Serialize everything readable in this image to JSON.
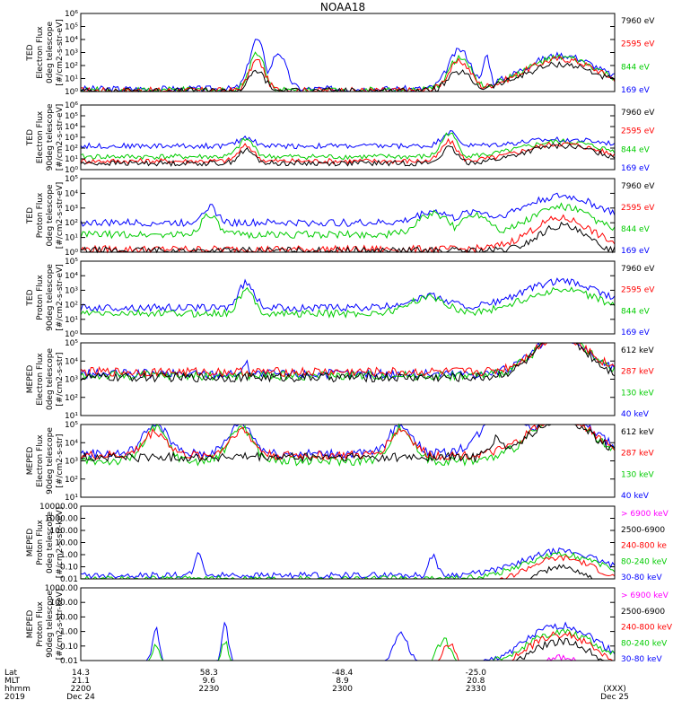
{
  "title": "NOAA18",
  "colors": {
    "black": "#000000",
    "red": "#ff0000",
    "green": "#00cc00",
    "blue": "#0000ff",
    "magenta": "#ff00ff"
  },
  "chart_data": [
    {
      "type": "line",
      "panel": 1,
      "ylabel": [
        "TED",
        "Electron Flux",
        "0deg telescope",
        "[#/cm2-s-str-eV]"
      ],
      "yscale": "log",
      "ylim": [
        1,
        1000000
      ],
      "yticks": [
        {
          "v": 1,
          "t": "10⁰"
        },
        {
          "v": 10,
          "t": "10¹"
        },
        {
          "v": 100,
          "t": "10²"
        },
        {
          "v": 1000,
          "t": "10³"
        },
        {
          "v": 10000,
          "t": "10⁴"
        },
        {
          "v": 100000,
          "t": "10⁵"
        },
        {
          "v": 1000000,
          "t": "10⁶"
        }
      ],
      "legend": [
        {
          "text": "7960 eV",
          "color": "#000000"
        },
        {
          "text": "2595 eV",
          "color": "#ff0000"
        },
        {
          "text": "844 eV",
          "color": "#00cc00"
        },
        {
          "text": "169 eV",
          "color": "#0000ff"
        }
      ],
      "segments": [
        [
          0.51,
          0.09,
          0.5
        ],
        [
          0.2,
          0.33,
          0.0
        ],
        [
          0.71,
          0.98,
          0.0
        ]
      ],
      "series": [
        {
          "color": "#0000ff",
          "base": 0.2,
          "peaks": [
            [
              0.33,
              4.0,
              0.02
            ],
            [
              0.71,
              3.2,
              0.03
            ],
            [
              0.76,
              2.8,
              0.01
            ],
            [
              0.37,
              3.0,
              0.02
            ],
            [
              0.9,
              2.8,
              0.1
            ]
          ]
        },
        {
          "color": "#00cc00",
          "base": 0.1,
          "peaks": [
            [
              0.33,
              3.0,
              0.02
            ],
            [
              0.71,
              2.6,
              0.03
            ],
            [
              0.9,
              2.6,
              0.1
            ]
          ]
        },
        {
          "color": "#ff0000",
          "base": 0.08,
          "peaks": [
            [
              0.33,
              2.4,
              0.02
            ],
            [
              0.71,
              2.3,
              0.03
            ],
            [
              0.9,
              2.5,
              0.1
            ]
          ]
        },
        {
          "color": "#000000",
          "base": 0.05,
          "peaks": [
            [
              0.33,
              1.6,
              0.02
            ],
            [
              0.71,
              1.5,
              0.03
            ],
            [
              0.9,
              2.1,
              0.1
            ]
          ]
        }
      ]
    },
    {
      "type": "line",
      "panel": 2,
      "ylabel": [
        "TED",
        "Electron Flux",
        "90deg telescope",
        "[#/cm2-s-str-eV]"
      ],
      "yscale": "log",
      "ylim": [
        1,
        1000000
      ],
      "yticks": [
        {
          "v": 1,
          "t": "10⁰"
        },
        {
          "v": 10,
          "t": "10¹"
        },
        {
          "v": 100,
          "t": "10²"
        },
        {
          "v": 1000,
          "t": "10³"
        },
        {
          "v": 10000,
          "t": "10⁴"
        },
        {
          "v": 100000,
          "t": "10⁵"
        },
        {
          "v": 1000000,
          "t": "10⁶"
        }
      ],
      "legend": [
        {
          "text": "7960 eV",
          "color": "#000000"
        },
        {
          "text": "2595 eV",
          "color": "#ff0000"
        },
        {
          "text": "844 eV",
          "color": "#00cc00"
        },
        {
          "text": "169 eV",
          "color": "#0000ff"
        }
      ],
      "series": [
        {
          "color": "#0000ff",
          "base": 2.2,
          "peaks": [
            [
              0.31,
              3.0,
              0.02
            ],
            [
              0.69,
              3.5,
              0.02
            ],
            [
              0.9,
              2.8,
              0.1
            ]
          ]
        },
        {
          "color": "#00cc00",
          "base": 1.2,
          "peaks": [
            [
              0.31,
              2.8,
              0.02
            ],
            [
              0.69,
              3.4,
              0.02
            ],
            [
              0.9,
              2.6,
              0.1
            ]
          ]
        },
        {
          "color": "#ff0000",
          "base": 0.8,
          "peaks": [
            [
              0.31,
              2.2,
              0.02
            ],
            [
              0.69,
              2.6,
              0.02
            ],
            [
              0.9,
              2.4,
              0.1
            ]
          ]
        },
        {
          "color": "#000000",
          "base": 0.6,
          "peaks": [
            [
              0.31,
              1.8,
              0.02
            ],
            [
              0.69,
              2.0,
              0.02
            ],
            [
              0.9,
              2.2,
              0.1
            ]
          ]
        }
      ]
    },
    {
      "type": "line",
      "panel": 3,
      "ylabel": [
        "TED",
        "Proton Flux",
        "0deg telescope",
        "[#/cm2-s-str-eV]"
      ],
      "yscale": "log",
      "ylim": [
        1,
        100000
      ],
      "yticks": [
        {
          "v": 1,
          "t": "10⁰"
        },
        {
          "v": 10,
          "t": "10¹"
        },
        {
          "v": 100,
          "t": "10²"
        },
        {
          "v": 1000,
          "t": "10³"
        },
        {
          "v": 10000,
          "t": "10⁴"
        },
        {
          "v": 100000,
          "t": "10⁵"
        }
      ],
      "legend": [
        {
          "text": "7960 eV",
          "color": "#000000"
        },
        {
          "text": "2595 eV",
          "color": "#ff0000"
        },
        {
          "text": "844 eV",
          "color": "#00cc00"
        },
        {
          "text": "169 eV",
          "color": "#0000ff"
        }
      ],
      "series": [
        {
          "color": "#0000ff",
          "base": 2.0,
          "peaks": [
            [
              0.24,
              3.1,
              0.02
            ],
            [
              0.66,
              2.8,
              0.04
            ],
            [
              0.74,
              2.8,
              0.04
            ],
            [
              0.9,
              3.8,
              0.1
            ]
          ]
        },
        {
          "color": "#00cc00",
          "base": 1.2,
          "peaks": [
            [
              0.24,
              2.6,
              0.02
            ],
            [
              0.66,
              2.6,
              0.04
            ],
            [
              0.74,
              2.6,
              0.04
            ],
            [
              0.9,
              3.1,
              0.08
            ]
          ]
        },
        {
          "color": "#ff0000",
          "base": 0.2,
          "peaks": [
            [
              0.9,
              2.3,
              0.08
            ]
          ]
        },
        {
          "color": "#000000",
          "base": 0.1,
          "peaks": [
            [
              0.9,
              1.8,
              0.06
            ]
          ]
        }
      ]
    },
    {
      "type": "line",
      "panel": 4,
      "ylabel": [
        "TED",
        "Proton Flux",
        "90deg telescope",
        "[#/cm2-s-str-eV]"
      ],
      "yscale": "log",
      "ylim": [
        1,
        100000
      ],
      "yticks": [
        {
          "v": 1,
          "t": "10⁰"
        },
        {
          "v": 10,
          "t": "10¹"
        },
        {
          "v": 100,
          "t": "10²"
        },
        {
          "v": 1000,
          "t": "10³"
        },
        {
          "v": 10000,
          "t": "10⁴"
        },
        {
          "v": 100000,
          "t": "10⁵"
        }
      ],
      "legend": [
        {
          "text": "7960 eV",
          "color": "#000000"
        },
        {
          "text": "2595 eV",
          "color": "#ff0000"
        },
        {
          "text": "844 eV",
          "color": "#00cc00"
        },
        {
          "text": "169 eV",
          "color": "#0000ff"
        }
      ],
      "series": [
        {
          "color": "#0000ff",
          "base": 1.8,
          "peaks": [
            [
              0.31,
              3.5,
              0.02
            ],
            [
              0.65,
              2.6,
              0.05
            ],
            [
              0.9,
              3.6,
              0.1
            ]
          ]
        },
        {
          "color": "#00cc00",
          "base": 1.4,
          "peaks": [
            [
              0.31,
              3.0,
              0.02
            ],
            [
              0.65,
              2.5,
              0.05
            ],
            [
              0.9,
              3.0,
              0.1
            ]
          ]
        }
      ]
    },
    {
      "type": "line",
      "panel": 5,
      "ylabel": [
        "MEPED",
        "Electron Flux",
        "0deg telescope",
        "[#/cm2-s-str]"
      ],
      "yscale": "log",
      "ylim": [
        10,
        100000
      ],
      "yticks": [
        {
          "v": 10,
          "t": "10¹"
        },
        {
          "v": 100,
          "t": "10²"
        },
        {
          "v": 1000,
          "t": "10³"
        },
        {
          "v": 10000,
          "t": "10⁴"
        },
        {
          "v": 100000,
          "t": "10⁵"
        }
      ],
      "legend": [
        {
          "text": "612 keV",
          "color": "#000000"
        },
        {
          "text": "287 keV",
          "color": "#ff0000"
        },
        {
          "text": "130 keV",
          "color": "#00cc00"
        },
        {
          "text": "40 keV",
          "color": "#0000ff"
        }
      ],
      "series": [
        {
          "color": "#0000ff",
          "base": 2.3,
          "peaks": [
            [
              0.9,
              4.4,
              0.07
            ],
            [
              0.31,
              3.2,
              0.005
            ]
          ]
        },
        {
          "color": "#00cc00",
          "base": 2.2,
          "peaks": [
            [
              0.9,
              4.4,
              0.07
            ]
          ]
        },
        {
          "color": "#ff0000",
          "base": 2.4,
          "peaks": [
            [
              0.9,
              4.4,
              0.07
            ]
          ]
        },
        {
          "color": "#000000",
          "base": 2.1,
          "peaks": [
            [
              0.9,
              4.3,
              0.07
            ]
          ]
        }
      ]
    },
    {
      "type": "line",
      "panel": 6,
      "ylabel": [
        "MEPED",
        "Electron Flux",
        "90deg telescope",
        "[#/cm2-s-str]"
      ],
      "yscale": "log",
      "ylim": [
        10,
        100000
      ],
      "yticks": [
        {
          "v": 10,
          "t": "10¹"
        },
        {
          "v": 100,
          "t": "10²"
        },
        {
          "v": 1000,
          "t": "10³"
        },
        {
          "v": 10000,
          "t": "10⁴"
        },
        {
          "v": 100000,
          "t": "10⁵"
        }
      ],
      "legend": [
        {
          "text": "612 keV",
          "color": "#000000"
        },
        {
          "text": "287 keV",
          "color": "#ff0000"
        },
        {
          "text": "130 keV",
          "color": "#00cc00"
        },
        {
          "text": "40 keV",
          "color": "#0000ff"
        }
      ],
      "series": [
        {
          "color": "#0000ff",
          "base": 2.4,
          "peaks": [
            [
              0.14,
              4.1,
              0.03
            ],
            [
              0.3,
              4.1,
              0.03
            ],
            [
              0.6,
              4.0,
              0.03
            ],
            [
              0.8,
              4.9,
              0.06
            ],
            [
              0.9,
              4.6,
              0.08
            ]
          ]
        },
        {
          "color": "#00cc00",
          "base": 2.0,
          "peaks": [
            [
              0.14,
              3.8,
              0.03
            ],
            [
              0.3,
              3.9,
              0.03
            ],
            [
              0.6,
              3.8,
              0.03
            ],
            [
              0.9,
              4.5,
              0.08
            ]
          ]
        },
        {
          "color": "#ff0000",
          "base": 2.3,
          "peaks": [
            [
              0.14,
              3.6,
              0.03
            ],
            [
              0.3,
              3.7,
              0.03
            ],
            [
              0.6,
              3.7,
              0.03
            ],
            [
              0.9,
              4.5,
              0.08
            ]
          ]
        },
        {
          "color": "#000000",
          "base": 2.2,
          "peaks": [
            [
              0.9,
              4.3,
              0.08
            ],
            [
              0.78,
              3.2,
              0.02
            ]
          ]
        }
      ]
    },
    {
      "type": "line",
      "panel": 7,
      "ylabel": [
        "MEPED",
        "Proton Flux",
        "0deg telescope",
        "[#/cm2-s-str-keV]"
      ],
      "yscale": "log",
      "ylim": [
        0.01,
        10000
      ],
      "yticks": [
        {
          "v": 0.01,
          "t": "0.01"
        },
        {
          "v": 0.1,
          "t": "0.10"
        },
        {
          "v": 1,
          "t": "1.00"
        },
        {
          "v": 10,
          "t": "10.00"
        },
        {
          "v": 100,
          "t": "100.00"
        },
        {
          "v": 1000,
          "t": "1000.00"
        },
        {
          "v": 10000,
          "t": "10000.00"
        }
      ],
      "legend": [
        {
          "text": "> 6900 keV",
          "color": "#ff00ff"
        },
        {
          "text": "2500-6900",
          "color": "#000000"
        },
        {
          "text": "240-800 ke",
          "color": "#ff0000"
        },
        {
          "text": "80-240 keV",
          "color": "#00cc00"
        },
        {
          "text": "30-80 keV",
          "color": "#0000ff"
        }
      ],
      "series": [
        {
          "color": "#0000ff",
          "base": 0.3,
          "peaks": [
            [
              0.22,
              2.0,
              0.01
            ],
            [
              0.66,
              2.0,
              0.01
            ],
            [
              0.9,
              2.3,
              0.1
            ]
          ]
        },
        {
          "color": "#00cc00",
          "base": 0.0,
          "peaks": [
            [
              0.9,
              2.0,
              0.1
            ]
          ]
        },
        {
          "color": "#ff0000",
          "base": -0.8,
          "peaks": [
            [
              0.9,
              1.7,
              0.1
            ]
          ]
        },
        {
          "color": "#000000",
          "base": -1.5,
          "peaks": [
            [
              0.9,
              1.0,
              0.08
            ]
          ]
        },
        {
          "color": "#ff00ff",
          "base": -2.0,
          "peaks": [
            [
              0.9,
              -0.3,
              0.06
            ]
          ]
        }
      ]
    },
    {
      "type": "line",
      "panel": 8,
      "ylabel": [
        "MEPED",
        "Proton Flux",
        "90deg telescope",
        "[#/cm2-s-str-keV]"
      ],
      "yscale": "log",
      "ylim": [
        0.01,
        1000
      ],
      "yticks": [
        {
          "v": 0.01,
          "t": "0.01"
        },
        {
          "v": 0.1,
          "t": "0.10"
        },
        {
          "v": 1,
          "t": "1.00"
        },
        {
          "v": 10,
          "t": "10.00"
        },
        {
          "v": 100,
          "t": "100.00"
        },
        {
          "v": 1000,
          "t": "1000.00"
        }
      ],
      "legend": [
        {
          "text": "> 6900 keV",
          "color": "#ff00ff"
        },
        {
          "text": "2500-6900",
          "color": "#000000"
        },
        {
          "text": "240-800 keV",
          "color": "#ff0000"
        },
        {
          "text": "80-240 keV",
          "color": "#00cc00"
        },
        {
          "text": "30-80 keV",
          "color": "#0000ff"
        }
      ],
      "series": [
        {
          "color": "#0000ff",
          "base": -0.5,
          "peaks": [
            [
              0.14,
              2.2,
              0.01
            ],
            [
              0.27,
              2.4,
              0.01
            ],
            [
              0.6,
              2.0,
              0.02
            ],
            [
              0.9,
              2.4,
              0.1
            ]
          ]
        },
        {
          "color": "#00cc00",
          "base": -0.6,
          "peaks": [
            [
              0.14,
              1.2,
              0.01
            ],
            [
              0.27,
              1.3,
              0.01
            ],
            [
              0.68,
              1.4,
              0.02
            ],
            [
              0.9,
              2.0,
              0.1
            ]
          ]
        },
        {
          "color": "#ff0000",
          "base": -1.2,
          "peaks": [
            [
              0.69,
              1.2,
              0.02
            ],
            [
              0.9,
              1.8,
              0.1
            ]
          ]
        },
        {
          "color": "#000000",
          "base": -1.4,
          "peaks": [
            [
              0.7,
              -0.2,
              0.02
            ],
            [
              0.9,
              1.3,
              0.1
            ]
          ]
        },
        {
          "color": "#ff00ff",
          "base": -1.8,
          "peaks": [
            [
              0.9,
              0.2,
              0.07
            ]
          ]
        }
      ]
    }
  ],
  "xaxis": {
    "row_labels": [
      "Lat",
      "MLT",
      "hhmm",
      "2019"
    ],
    "ticks": [
      {
        "lat": "14.3",
        "mlt": "21.1",
        "hhmm": "2200",
        "date": "Dec 24"
      },
      {
        "lat": "58.3",
        "mlt": "9.6",
        "hhmm": "2230",
        "date": ""
      },
      {
        "lat": "-48.4",
        "mlt": "8.9",
        "hhmm": "2300",
        "date": ""
      },
      {
        "lat": "-25.0",
        "mlt": "20.8",
        "hhmm": "2330",
        "date": ""
      },
      {
        "lat": "",
        "mlt": "",
        "hhmm": "(XXX)",
        "date": "Dec 25"
      }
    ]
  }
}
